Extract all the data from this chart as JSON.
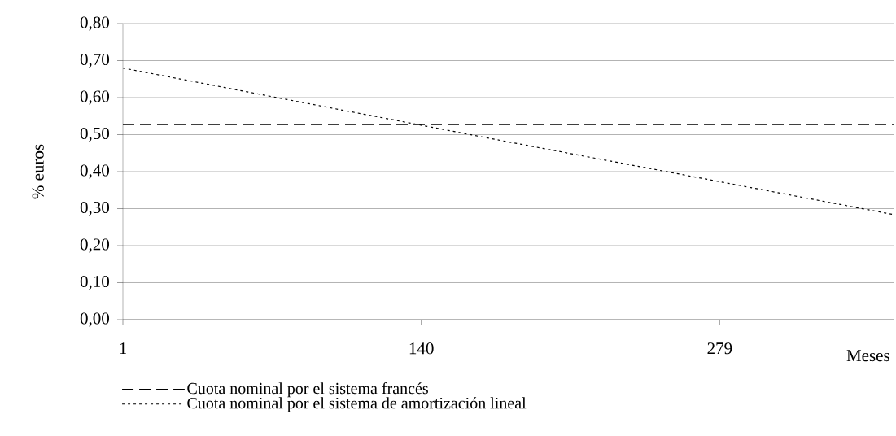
{
  "chart_data": {
    "type": "line",
    "ylabel": "% euros",
    "xlabel": "Meses",
    "series": [
      {
        "name": "Cuota nominal por el sistema francés",
        "color": "#000000",
        "line_style": "dashed",
        "x": [
          1,
          360
        ],
        "values": [
          0.527,
          0.527
        ]
      },
      {
        "name": "Cuota nominal por el sistema de amortización lineal",
        "color": "#000000",
        "line_style": "dotted",
        "x": [
          1,
          90,
          180,
          257,
          360
        ],
        "values": [
          0.68,
          0.581,
          0.481,
          0.397,
          0.284
        ]
      }
    ],
    "xlim": [
      1,
      360
    ],
    "xticks": [
      1,
      140,
      279
    ],
    "ylim": [
      0,
      0.8
    ],
    "yticks": [
      {
        "value": 0,
        "label": "0,00"
      },
      {
        "value": 0.1,
        "label": "0,10"
      },
      {
        "value": 0.2,
        "label": "0,20"
      },
      {
        "value": 0.3,
        "label": "0,30"
      },
      {
        "value": 0.4,
        "label": "0,40"
      },
      {
        "value": 0.5,
        "label": "0,50"
      },
      {
        "value": 0.6,
        "label": "0,60"
      },
      {
        "value": 0.7,
        "label": "0,70"
      },
      {
        "value": 0.8,
        "label": "0,80"
      }
    ],
    "grid": "y",
    "legend": "bottom"
  }
}
